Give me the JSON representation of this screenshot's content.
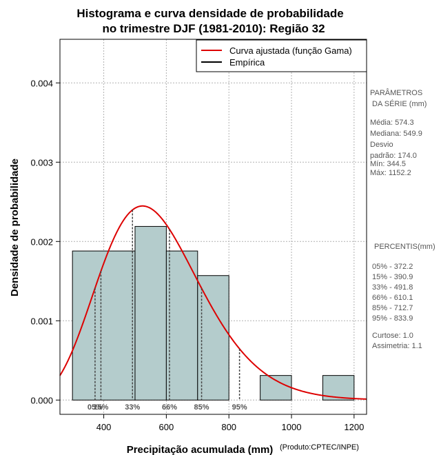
{
  "chart_data": {
    "type": "histogram",
    "title_lines": [
      "Histograma e curva densidade de probabilidade",
      "no trimestre DJF (1981-2010): Região 32"
    ],
    "xlabel": "Precipitação acumulada (mm)",
    "ylabel": "Densidade de probabilidade",
    "credit": "(Produto:CPTEC/INPE)",
    "xlim": [
      260,
      1240
    ],
    "ylim": [
      -0.00018,
      0.00455
    ],
    "x_ticks": [
      400,
      600,
      800,
      1000,
      1200
    ],
    "x_tick_labels": [
      "400",
      "600",
      "800",
      "1000",
      "1200"
    ],
    "y_ticks": [
      0,
      0.001,
      0.002,
      0.003,
      0.004
    ],
    "y_tick_labels": [
      "0.000",
      "0.001",
      "0.002",
      "0.003",
      "0.004"
    ],
    "grid": true,
    "bins": [
      {
        "from": 300,
        "to": 500,
        "density": 0.00188
      },
      {
        "from": 500,
        "to": 600,
        "density": 0.00219
      },
      {
        "from": 600,
        "to": 700,
        "density": 0.00188
      },
      {
        "from": 700,
        "to": 800,
        "density": 0.00157
      },
      {
        "from": 900,
        "to": 1000,
        "density": 0.00031
      },
      {
        "from": 1100,
        "to": 1200,
        "density": 0.00031
      }
    ],
    "fitted_curve": {
      "name": "Curva ajustada (função Gama)",
      "color": "#dd0000",
      "distribution": "gamma",
      "shape": 11.5,
      "scale": 49.9
    },
    "empirical": {
      "name": "Empírica",
      "color": "#000000"
    },
    "legend_position": "top-right",
    "percentile_markers": [
      {
        "label": "05%",
        "value": 372.2
      },
      {
        "label": "15%",
        "value": 390.9
      },
      {
        "label": "33%",
        "value": 491.8
      },
      {
        "label": "66%",
        "value": 610.1
      },
      {
        "label": "85%",
        "value": 712.7
      },
      {
        "label": "95%",
        "value": 833.9
      }
    ],
    "bar_color": "#b4cccc"
  },
  "side_panel": {
    "params_title_1": "PARÂMETROS",
    "params_title_2": "DA SÉRIE (mm)",
    "media": "Média:  574.3",
    "mediana": "Mediana:  549.9",
    "desvio_1": "Desvio",
    "desvio_2": "padrão:  174.0",
    "min": "Mín:  344.5",
    "max": "Máx:  1152.2",
    "percentis_title": "PERCENTIS(mm)",
    "p05": "05% -   372.2",
    "p15": "15% -   390.9",
    "p33": "33% -   491.8",
    "p66": "66% -   610.1",
    "p85": "85% -   712.7",
    "p95": "95% -   833.9",
    "curtose": "Curtose:  1.0",
    "assimetria": "Assimetria:  1.1"
  }
}
